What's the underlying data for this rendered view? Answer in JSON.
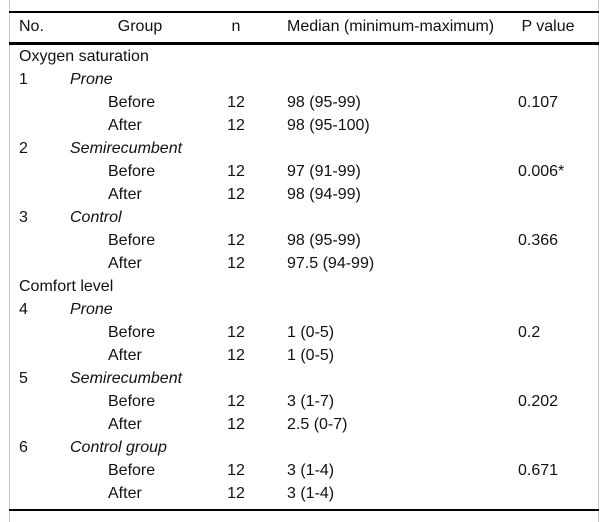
{
  "colors": {
    "rule": "#000000",
    "frame": "#c9c9c9",
    "text": "#111111",
    "background": "#ffffff"
  },
  "table": {
    "header": {
      "no": "No.",
      "group": "Group",
      "n": "n",
      "median": "Median (minimum-maximum)",
      "p": "P value"
    },
    "rows": [
      {
        "type": "section",
        "label": "Oxygen saturation"
      },
      {
        "type": "group",
        "no": "1",
        "label": "Prone"
      },
      {
        "type": "data",
        "label": "Before",
        "n": "12",
        "median": "98 (95-99)",
        "p": "0.107"
      },
      {
        "type": "data",
        "label": "After",
        "n": "12",
        "median": "98 (95-100)"
      },
      {
        "type": "group",
        "no": "2",
        "label": "Semirecumbent"
      },
      {
        "type": "data",
        "label": "Before",
        "n": "12",
        "median": "97 (91-99)",
        "p": "0.006*"
      },
      {
        "type": "data",
        "label": "After",
        "n": "12",
        "median": "98 (94-99)"
      },
      {
        "type": "group",
        "no": "3",
        "label": "Control"
      },
      {
        "type": "data",
        "label": "Before",
        "n": "12",
        "median": "98 (95-99)",
        "p": "0.366"
      },
      {
        "type": "data",
        "label": "After",
        "n": "12",
        "median": "97.5 (94-99)"
      },
      {
        "type": "section",
        "label": "Comfort level"
      },
      {
        "type": "group",
        "no": "4",
        "label": "Prone"
      },
      {
        "type": "data",
        "label": "Before",
        "n": "12",
        "median": "1 (0-5)",
        "p": "0.2"
      },
      {
        "type": "data",
        "label": "After",
        "n": "12",
        "median": "1 (0-5)"
      },
      {
        "type": "group",
        "no": "5",
        "label": "Semirecumbent"
      },
      {
        "type": "data",
        "label": "Before",
        "n": "12",
        "median": "3 (1-7)",
        "p": "0.202"
      },
      {
        "type": "data",
        "label": "After",
        "n": "12",
        "median": "2.5 (0-7)"
      },
      {
        "type": "group",
        "no": "6",
        "label": "Control group"
      },
      {
        "type": "data",
        "label": "Before",
        "n": "12",
        "median": "3 (1-4)",
        "p": "0.671"
      },
      {
        "type": "data",
        "label": "After",
        "n": "12",
        "median": "3 (1-4)"
      }
    ]
  }
}
